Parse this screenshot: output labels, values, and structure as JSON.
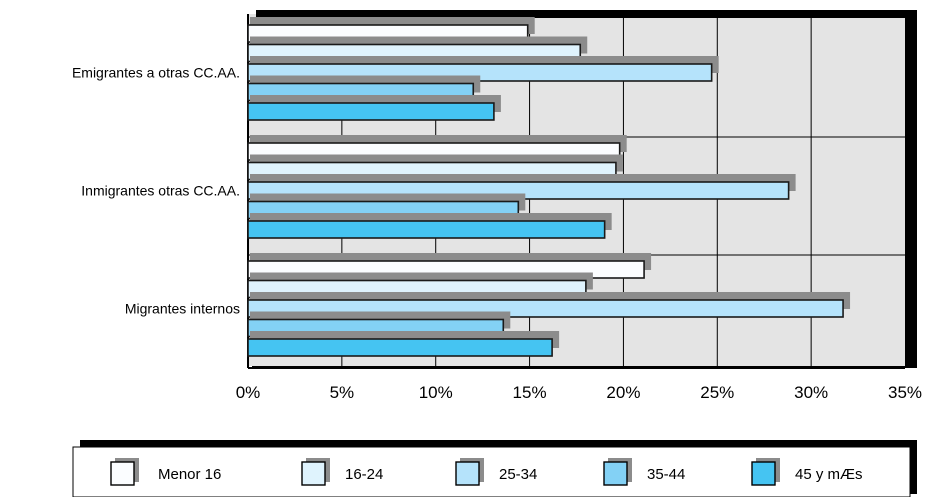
{
  "chart_data": {
    "type": "bar",
    "orientation": "horizontal",
    "categories": [
      "Emigrantes a otras CC.AA.",
      "Inmigrantes otras CC.AA.",
      "Migrantes internos"
    ],
    "series": [
      {
        "name": "Menor 16",
        "values": [
          14.9,
          19.8,
          21.1
        ]
      },
      {
        "name": "16-24",
        "values": [
          17.7,
          19.6,
          18.0
        ]
      },
      {
        "name": "25-34",
        "values": [
          24.7,
          28.8,
          31.7
        ]
      },
      {
        "name": "35-44",
        "values": [
          12.0,
          14.4,
          13.6
        ]
      },
      {
        "name": "45 y mÆs",
        "values": [
          13.1,
          19.0,
          16.2
        ]
      }
    ],
    "xlim": [
      0,
      35
    ],
    "xticks": [
      "0%",
      "5%",
      "10%",
      "15%",
      "20%",
      "25%",
      "30%",
      "35%"
    ],
    "grid": true,
    "legend_position": "bottom",
    "colors": {
      "series": [
        "#fbfdff",
        "#dff3fd",
        "#b5e3fb",
        "#83d1f5",
        "#45c4f2"
      ],
      "plot_background": "#e4e4e4",
      "bar_shadow": "#8c8c8c",
      "frame": "#000000"
    }
  }
}
